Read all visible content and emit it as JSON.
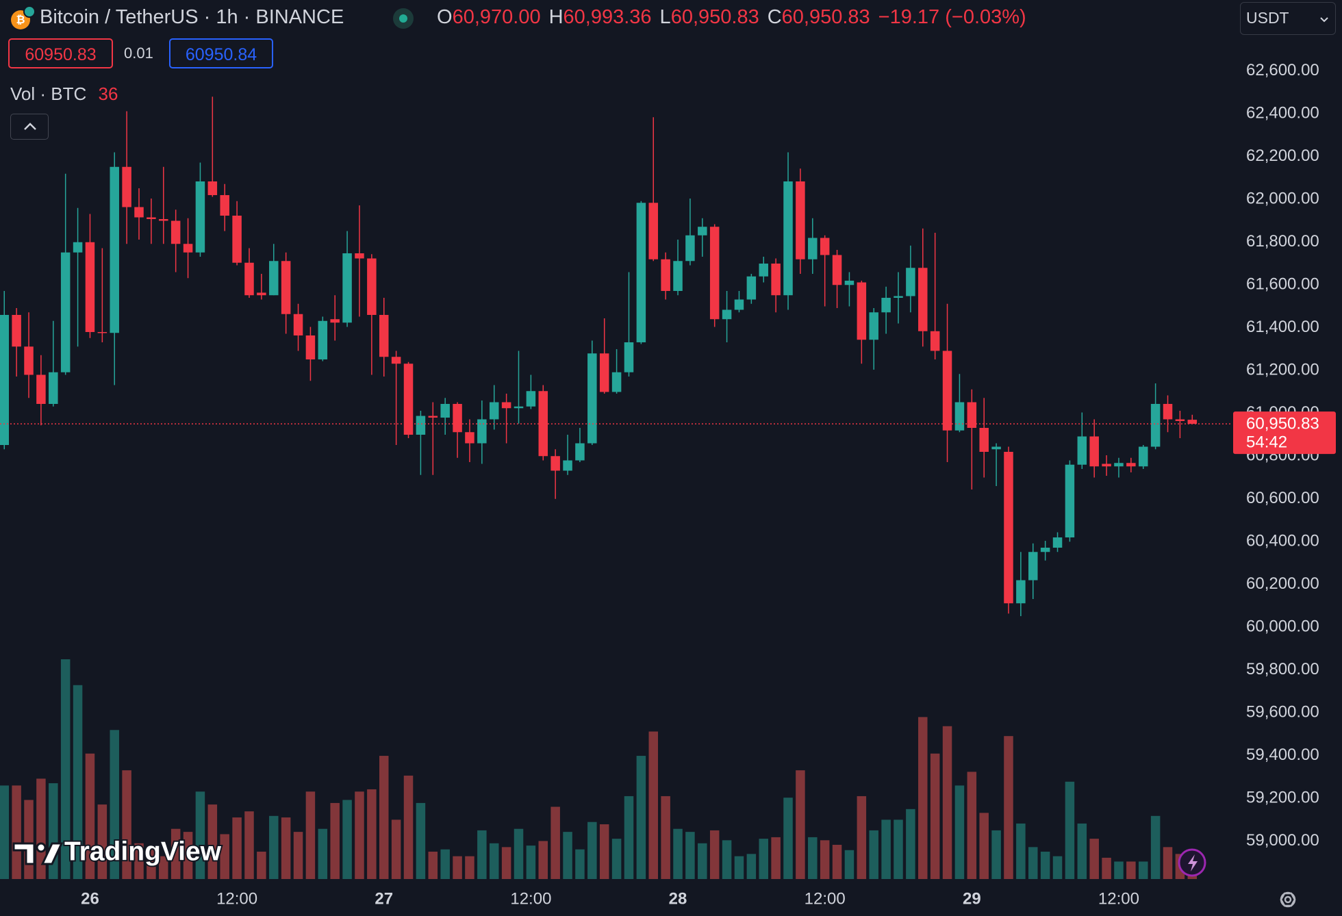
{
  "header": {
    "symbol": "Bitcoin / TetherUS · 1h · BINANCE",
    "ohlc": [
      {
        "letter": "O",
        "value": "60,970.00"
      },
      {
        "letter": "H",
        "value": "60,993.36"
      },
      {
        "letter": "L",
        "value": "60,950.83"
      },
      {
        "letter": "C",
        "value": "60,950.83"
      }
    ],
    "change": "−19.17 (−0.03%)"
  },
  "order_panel": {
    "sell": "60950.83",
    "spread": "0.01",
    "buy": "60950.84"
  },
  "volume_legend": {
    "label": "Vol · BTC"
  },
  "currency": "USDT",
  "brand": "TradingView",
  "chart_data": {
    "type": "candlestick",
    "categories": [
      null,
      null,
      null,
      null,
      null,
      null,
      null,
      "26",
      null,
      null,
      null,
      null,
      null,
      null,
      null,
      null,
      null,
      null,
      null,
      "12:00",
      null,
      null,
      null,
      null,
      null,
      null,
      null,
      null,
      null,
      null,
      null,
      "27",
      null,
      null,
      null,
      null,
      null,
      null,
      null,
      null,
      null,
      null,
      null,
      "12:00",
      null,
      null,
      null,
      null,
      null,
      null,
      null,
      null,
      null,
      null,
      null,
      "28",
      null,
      null,
      null,
      null,
      null,
      null,
      null,
      null,
      null,
      null,
      null,
      "12:00",
      null,
      null,
      null,
      null,
      null,
      null,
      null,
      null,
      null,
      null,
      null,
      "29",
      null,
      null,
      null,
      null,
      null,
      null,
      null,
      null,
      null,
      null,
      null,
      "12:00",
      null,
      null,
      null,
      null,
      null,
      null
    ],
    "open": [
      60852,
      61460,
      61312,
      61180,
      61044,
      61192,
      61752,
      61800,
      61380,
      61376,
      62152,
      61964,
      61916,
      61908,
      61900,
      61792,
      61752,
      62084,
      62020,
      61924,
      61704,
      61564,
      61552,
      61712,
      61464,
      61364,
      61252,
      61440,
      61424,
      61748,
      61724,
      61460,
      61264,
      61232,
      60900,
      60988,
      60980,
      61044,
      60912,
      60860,
      60972,
      61052,
      61024,
      61032,
      61104,
      60800,
      60732,
      60780,
      60860,
      61280,
      61100,
      61192,
      61332,
      61984,
      61720,
      61572,
      61712,
      61832,
      61872,
      61440,
      61484,
      61532,
      61640,
      61700,
      61552,
      62084,
      61720,
      61820,
      61740,
      61600,
      61612,
      61344,
      61472,
      61540,
      61548,
      61680,
      61384,
      61292,
      60920,
      61052,
      60932,
      60832,
      60820,
      60112,
      60220,
      60352,
      60372,
      60420,
      60760,
      60892,
      60764,
      60752,
      60768,
      60752,
      60844,
      61044,
      60972,
      60970
    ],
    "high": [
      61572,
      61492,
      61472,
      61272,
      61432,
      62120,
      61960,
      61932,
      61772,
      62220,
      62412,
      62052,
      62004,
      62152,
      61952,
      61912,
      62172,
      62480,
      62072,
      61992,
      61772,
      61652,
      61792,
      61752,
      61512,
      61404,
      61452,
      61552,
      61852,
      61972,
      61744,
      61540,
      61292,
      61240,
      61012,
      61052,
      61072,
      61052,
      60972,
      61060,
      61132,
      61092,
      61292,
      61180,
      61132,
      60832,
      60900,
      60932,
      61340,
      61444,
      61300,
      61660,
      61992,
      62384,
      61752,
      61812,
      62004,
      61912,
      61884,
      61572,
      61572,
      61652,
      61732,
      61724,
      62220,
      62144,
      61912,
      61832,
      61764,
      61660,
      61620,
      61492,
      61592,
      61660,
      61784,
      61864,
      61844,
      61512,
      61184,
      61112,
      61072,
      60860,
      60844,
      60352,
      60392,
      60404,
      60444,
      60780,
      61004,
      60972,
      60804,
      60792,
      60792,
      60852,
      61140,
      61084,
      61012,
      60993.36
    ],
    "low": [
      60832,
      61172,
      61072,
      60944,
      61032,
      61180,
      61312,
      61352,
      61332,
      61132,
      61792,
      61812,
      61792,
      61792,
      61660,
      61632,
      61732,
      62012,
      61852,
      61692,
      61540,
      61532,
      61552,
      61372,
      61292,
      61152,
      61244,
      61340,
      61404,
      61452,
      61180,
      61172,
      60852,
      60884,
      60712,
      60712,
      60900,
      60792,
      60772,
      60764,
      60924,
      60860,
      60952,
      61020,
      60780,
      60600,
      60712,
      60772,
      60852,
      61092,
      61092,
      61172,
      61324,
      61712,
      61532,
      61552,
      61692,
      61732,
      61404,
      61332,
      61472,
      61512,
      61612,
      61472,
      61484,
      61652,
      61652,
      61500,
      61492,
      61500,
      61232,
      61204,
      61372,
      61420,
      61472,
      61312,
      61252,
      60772,
      60912,
      60644,
      60700,
      60660,
      60064,
      60052,
      60132,
      60312,
      60352,
      60400,
      60740,
      60700,
      60708,
      60700,
      60724,
      60740,
      60832,
      60912,
      60884,
      60950.83
    ],
    "close": [
      61460,
      61312,
      61180,
      61044,
      61192,
      61752,
      61800,
      61380,
      61376,
      62152,
      61964,
      61916,
      61908,
      61900,
      61792,
      61752,
      62084,
      62020,
      61924,
      61704,
      61552,
      61552,
      61712,
      61464,
      61364,
      61252,
      61432,
      61424,
      61748,
      61724,
      61460,
      61264,
      61232,
      60900,
      60988,
      60980,
      61044,
      60912,
      60860,
      60972,
      61052,
      61024,
      61032,
      61104,
      60800,
      60732,
      60780,
      60860,
      61280,
      61100,
      61192,
      61332,
      61984,
      61720,
      61572,
      61712,
      61832,
      61872,
      61440,
      61484,
      61532,
      61640,
      61700,
      61552,
      62084,
      61720,
      61820,
      61740,
      61600,
      61620,
      61344,
      61472,
      61540,
      61548,
      61680,
      61384,
      61292,
      60920,
      61052,
      60932,
      60820,
      60844,
      60112,
      60220,
      60352,
      60372,
      60420,
      60760,
      60892,
      60752,
      60752,
      60768,
      60752,
      60844,
      61044,
      60972,
      60964,
      60950.83
    ],
    "volume": [
      123,
      123,
      104,
      132,
      126,
      289,
      255,
      165,
      98,
      196,
      143,
      47,
      42,
      30,
      66,
      62,
      115,
      98,
      59,
      81,
      89,
      36,
      83,
      81,
      62,
      115,
      66,
      100,
      104,
      115,
      118,
      162,
      78,
      136,
      100,
      36,
      39,
      30,
      30,
      64,
      47,
      42,
      66,
      44,
      50,
      95,
      62,
      39,
      75,
      72,
      53,
      109,
      162,
      194,
      109,
      66,
      62,
      47,
      64,
      51,
      30,
      33,
      53,
      55,
      107,
      143,
      55,
      51,
      45,
      38,
      109,
      64,
      78,
      78,
      92,
      213,
      165,
      201,
      123,
      141,
      87,
      64,
      188,
      73,
      42,
      36,
      30,
      128,
      73,
      53,
      28,
      23,
      23,
      23,
      83,
      42,
      33,
      36
    ],
    "up_color": "#26a69a",
    "down_color": "#f23645",
    "up_volume_color": "#1d5e5c",
    "down_volume_color": "#82363a",
    "ylim": [
      58812,
      62932
    ],
    "yticks": [
      {
        "value": 62600,
        "label": "62,600.00"
      },
      {
        "value": 62400,
        "label": "62,400.00"
      },
      {
        "value": 62200,
        "label": "62,200.00"
      },
      {
        "value": 62000,
        "label": "62,000.00"
      },
      {
        "value": 61800,
        "label": "61,800.00"
      },
      {
        "value": 61600,
        "label": "61,600.00"
      },
      {
        "value": 61400,
        "label": "61,400.00"
      },
      {
        "value": 61200,
        "label": "61,200.00"
      },
      {
        "value": 61000,
        "label": "61,000.00"
      },
      {
        "value": 60800,
        "label": "60,800.00"
      },
      {
        "value": 60600,
        "label": "60,600.00"
      },
      {
        "value": 60400,
        "label": "60,400.00"
      },
      {
        "value": 60200,
        "label": "60,200.00"
      },
      {
        "value": 60000,
        "label": "60,000.00"
      },
      {
        "value": 59800,
        "label": "59,800.00"
      },
      {
        "value": 59600,
        "label": "59,600.00"
      },
      {
        "value": 59400,
        "label": "59,400.00"
      },
      {
        "value": 59200,
        "label": "59,200.00"
      },
      {
        "value": 59000,
        "label": "59,000.00"
      }
    ],
    "grid": false,
    "last_price_label": "60,950.83",
    "countdown": "54:42"
  }
}
